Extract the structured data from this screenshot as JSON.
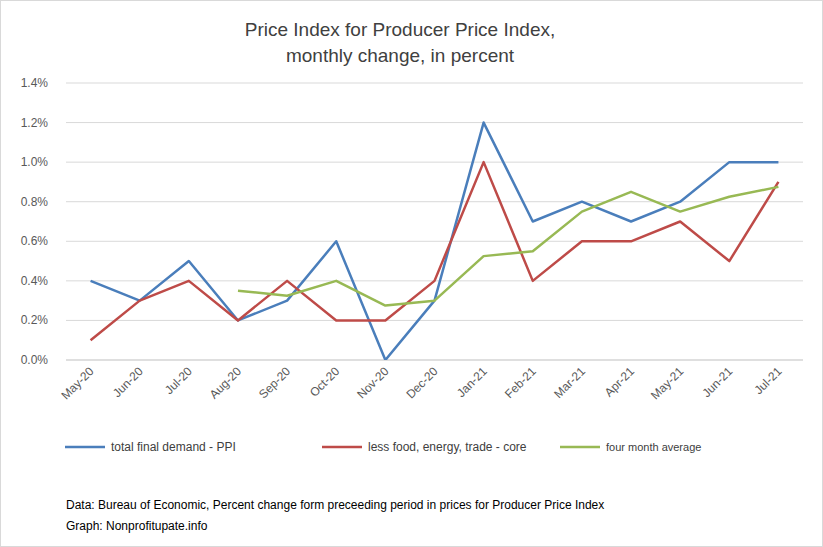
{
  "chart_data": {
    "type": "line",
    "title": "Price Index for Producer Price Index,",
    "subtitle": "monthly change, in percent",
    "categories": [
      "May-20",
      "Jun-20",
      "Jul-20",
      "Aug-20",
      "Sep-20",
      "Oct-20",
      "Nov-20",
      "Dec-20",
      "Jan-21",
      "Feb-21",
      "Mar-21",
      "Apr-21",
      "May-21",
      "Jun-21",
      "Jul-21"
    ],
    "series": [
      {
        "name": "total final demand -  PPI",
        "color": "#4a7ebb",
        "values": [
          0.4,
          0.3,
          0.5,
          0.2,
          0.3,
          0.6,
          0.0,
          0.3,
          1.2,
          0.7,
          0.8,
          0.7,
          0.8,
          1.0,
          1.0
        ]
      },
      {
        "name": "less food, energy, trade -  core",
        "color": "#be4b48",
        "values": [
          0.1,
          0.3,
          0.4,
          0.2,
          0.4,
          0.2,
          0.2,
          0.4,
          1.0,
          0.4,
          0.6,
          0.6,
          0.7,
          0.5,
          0.9
        ]
      },
      {
        "name": "four month average",
        "color": "#98b954",
        "values": [
          null,
          null,
          null,
          0.35,
          0.325,
          0.4,
          0.275,
          0.3,
          0.525,
          0.55,
          0.75,
          0.85,
          0.75,
          0.825,
          0.875
        ]
      }
    ],
    "ylim": [
      0,
      1.4
    ],
    "yticks": [
      {
        "value": 0,
        "label": "0.0%"
      },
      {
        "value": 0.2,
        "label": "0.2%"
      },
      {
        "value": 0.4,
        "label": "0.4%"
      },
      {
        "value": 0.6,
        "label": "0.6%"
      },
      {
        "value": 0.8,
        "label": "0.8%"
      },
      {
        "value": 1.0,
        "label": "1.0%"
      },
      {
        "value": 1.2,
        "label": "1.2%"
      },
      {
        "value": 1.4,
        "label": "1.4%"
      }
    ],
    "grid": true,
    "legend": "bottom",
    "source": [
      "Data: Bureau of Economic, Percent change form preceeding period in prices for Producer Price Index",
      "Graph:  Nonprofitupate.info"
    ]
  }
}
